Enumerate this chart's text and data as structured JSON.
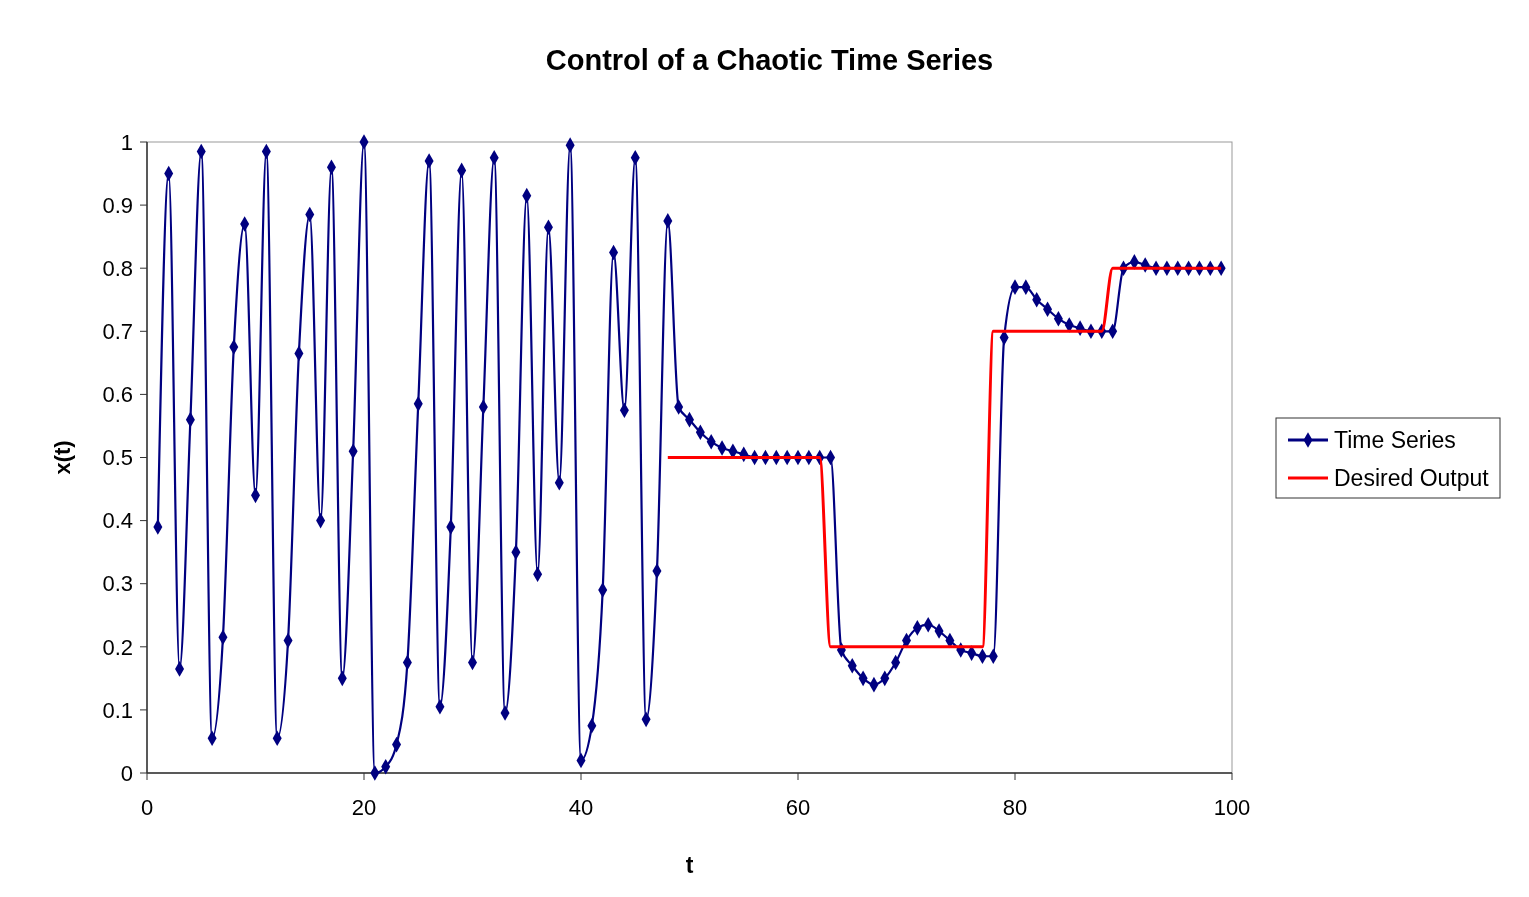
{
  "chart_data": {
    "type": "line",
    "title": "Control of a Chaotic Time Series",
    "xlabel": "t",
    "ylabel": "x(t)",
    "xlim": [
      0,
      100
    ],
    "xticks": [
      0,
      20,
      40,
      60,
      80,
      100
    ],
    "ylim": [
      0,
      1
    ],
    "yticks": [
      0,
      0.1,
      0.2,
      0.3,
      0.4,
      0.5,
      0.6,
      0.7,
      0.8,
      0.9,
      1
    ],
    "grid": false,
    "legend": "right",
    "series": [
      {
        "name": "Time Series",
        "color": "#000080",
        "marker": "diamond",
        "x": [
          1,
          2,
          3,
          4,
          5,
          6,
          7,
          8,
          9,
          10,
          11,
          12,
          13,
          14,
          15,
          16,
          17,
          18,
          19,
          20,
          21,
          22,
          23,
          24,
          25,
          26,
          27,
          28,
          29,
          30,
          31,
          32,
          33,
          34,
          35,
          36,
          37,
          38,
          39,
          40,
          41,
          42,
          43,
          44,
          45,
          46,
          47,
          48,
          49,
          50,
          51,
          52,
          53,
          54,
          55,
          56,
          57,
          58,
          59,
          60,
          61,
          62,
          63,
          64,
          65,
          66,
          67,
          68,
          69,
          70,
          71,
          72,
          73,
          74,
          75,
          76,
          77,
          78,
          79,
          80,
          81,
          82,
          83,
          84,
          85,
          86,
          87,
          88,
          89,
          90,
          91,
          92,
          93,
          94,
          95,
          96,
          97,
          98,
          99
        ],
        "values": [
          0.39,
          0.95,
          0.165,
          0.56,
          0.985,
          0.055,
          0.215,
          0.675,
          0.87,
          0.44,
          0.985,
          0.055,
          0.21,
          0.665,
          0.885,
          0.4,
          0.96,
          0.15,
          0.51,
          1.0,
          0.0,
          0.01,
          0.045,
          0.175,
          0.585,
          0.97,
          0.105,
          0.39,
          0.955,
          0.175,
          0.58,
          0.975,
          0.095,
          0.35,
          0.915,
          0.315,
          0.865,
          0.46,
          0.995,
          0.02,
          0.075,
          0.29,
          0.825,
          0.575,
          0.975,
          0.085,
          0.32,
          0.875,
          0.58,
          0.56,
          0.54,
          0.525,
          0.515,
          0.51,
          0.505,
          0.5,
          0.5,
          0.5,
          0.5,
          0.5,
          0.5,
          0.5,
          0.5,
          0.195,
          0.17,
          0.15,
          0.14,
          0.15,
          0.175,
          0.21,
          0.23,
          0.235,
          0.225,
          0.21,
          0.195,
          0.19,
          0.185,
          0.185,
          0.69,
          0.77,
          0.77,
          0.75,
          0.735,
          0.72,
          0.71,
          0.705,
          0.7,
          0.7,
          0.7,
          0.8,
          0.81,
          0.805,
          0.8,
          0.8,
          0.8,
          0.8,
          0.8,
          0.8,
          0.8
        ]
      },
      {
        "name": "Desired Output",
        "color": "#ff0000",
        "marker": "none",
        "x": [
          48,
          49,
          50,
          51,
          52,
          53,
          54,
          55,
          56,
          57,
          58,
          59,
          60,
          61,
          62,
          63,
          64,
          65,
          66,
          67,
          68,
          69,
          70,
          71,
          72,
          73,
          74,
          75,
          76,
          77,
          78,
          79,
          80,
          81,
          82,
          83,
          84,
          85,
          86,
          87,
          88,
          89,
          90,
          91,
          92,
          93,
          94,
          95,
          96,
          97,
          98,
          99
        ],
        "values": [
          0.5,
          0.5,
          0.5,
          0.5,
          0.5,
          0.5,
          0.5,
          0.5,
          0.5,
          0.5,
          0.5,
          0.5,
          0.5,
          0.5,
          0.5,
          0.2,
          0.2,
          0.2,
          0.2,
          0.2,
          0.2,
          0.2,
          0.2,
          0.2,
          0.2,
          0.2,
          0.2,
          0.2,
          0.2,
          0.2,
          0.7,
          0.7,
          0.7,
          0.7,
          0.7,
          0.7,
          0.7,
          0.7,
          0.7,
          0.7,
          0.7,
          0.8,
          0.8,
          0.8,
          0.8,
          0.8,
          0.8,
          0.8,
          0.8,
          0.8,
          0.8,
          0.8
        ]
      }
    ]
  }
}
